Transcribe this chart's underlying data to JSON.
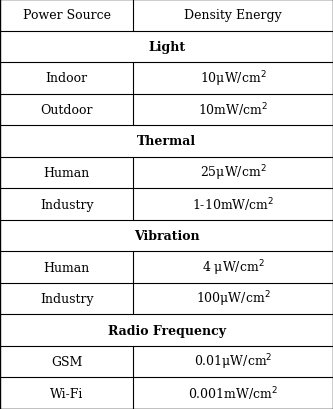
{
  "col_headers": [
    "Power Source",
    "Density Energy"
  ],
  "rows": [
    {
      "type": "section",
      "label": "Light"
    },
    {
      "type": "data",
      "col1": "Indoor",
      "col2_main": "10μW/cm",
      "col2_sup": "2"
    },
    {
      "type": "data",
      "col1": "Outdoor",
      "col2_main": "10mW/cm",
      "col2_sup": "2"
    },
    {
      "type": "section",
      "label": "Thermal"
    },
    {
      "type": "data",
      "col1": "Human",
      "col2_main": "25μW/cm",
      "col2_sup": "2"
    },
    {
      "type": "data",
      "col1": "Industry",
      "col2_main": "1-10mW/cm",
      "col2_sup": "2"
    },
    {
      "type": "section",
      "label": "Vibration"
    },
    {
      "type": "data",
      "col1": "Human",
      "col2_main": "4 μW/cm",
      "col2_sup": "2"
    },
    {
      "type": "data",
      "col1": "Industry",
      "col2_main": "100μW/cm",
      "col2_sup": "2"
    },
    {
      "type": "section",
      "label": "Radio Frequency"
    },
    {
      "type": "data",
      "col1": "GSM",
      "col2_main": "0.01μW/cm",
      "col2_sup": "2"
    },
    {
      "type": "data",
      "col1": "Wi-Fi",
      "col2_main": "0.001mW/cm",
      "col2_sup": "2"
    }
  ],
  "bg_color": "#ffffff",
  "line_color": "#000000",
  "text_color": "#000000",
  "header_fontsize": 9,
  "section_fontsize": 9,
  "data_fontsize": 9,
  "sup_fontsize": 6,
  "col_split": 0.4,
  "fig_width": 3.33,
  "fig_height": 4.1,
  "dpi": 100
}
